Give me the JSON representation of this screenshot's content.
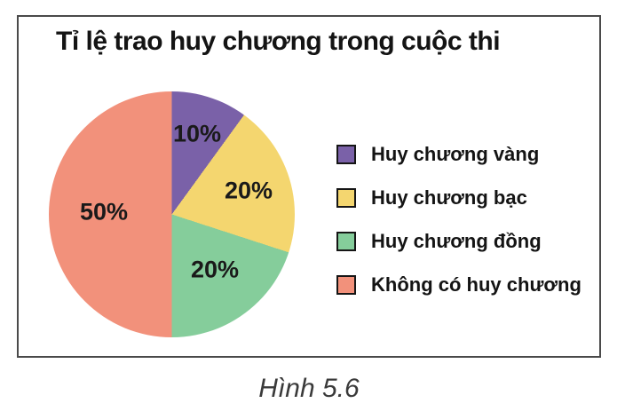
{
  "figure": {
    "caption": "Hình 5.6"
  },
  "chart_data": {
    "type": "pie",
    "title": "Tỉ lệ trao huy chương trong cuộc thi",
    "slices": [
      {
        "label": "Huy chương vàng",
        "value": 10,
        "display": "10%",
        "color": "#7a61a8"
      },
      {
        "label": "Huy chương bạc",
        "value": 20,
        "display": "20%",
        "color": "#f4d66f"
      },
      {
        "label": "Huy chương đồng",
        "value": 20,
        "display": "20%",
        "color": "#85cd9b"
      },
      {
        "label": "Không có huy chương",
        "value": 50,
        "display": "50%",
        "color": "#f2917b"
      }
    ],
    "start_angle_deg": 0,
    "direction": "clockwise",
    "value_labels": "inside",
    "legend_position": "right",
    "border_color": "#4a4a4a"
  }
}
